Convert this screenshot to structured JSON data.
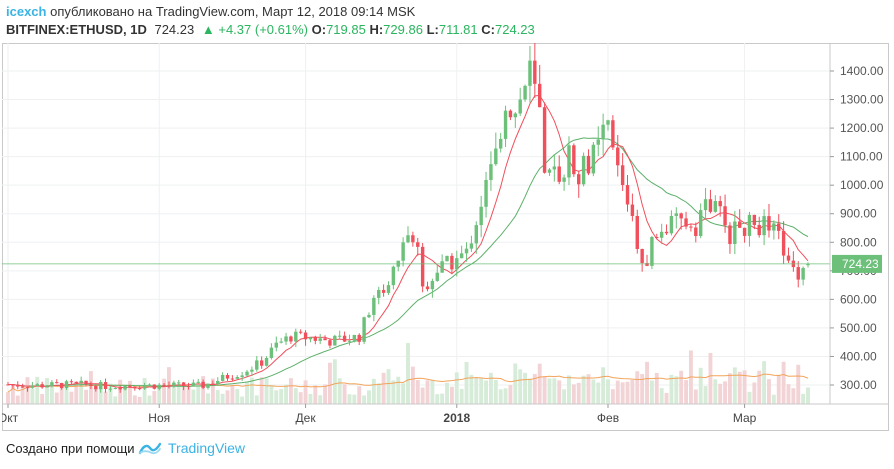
{
  "header": {
    "author": "icexch",
    "published_text": "опубликовано на TradingView.com, Март 12, 2018 09:14 MSK",
    "symbol": "BITFINEX:ETHUSD, 1D",
    "last": "724.23",
    "change": "+4.37 (+0.61%)",
    "o_label": "O:",
    "o_value": "719.85",
    "h_label": "H:",
    "h_value": "729.86",
    "l_label": "L:",
    "l_value": "711.81",
    "c_label": "C:",
    "c_value": "724.23"
  },
  "footer": {
    "created_with": "Создано при помощи",
    "brand": "TradingView"
  },
  "colors": {
    "up": "#6cc07a",
    "down": "#f0505c",
    "vol_up": "#d6ecd9",
    "vol_down": "#f3d4d6",
    "ma_fast": "#f0505c",
    "ma_slow": "#5db06a",
    "vol_ma": "#f3a35a",
    "price_line": "#6cc07a",
    "brand": "#3bb3e4"
  },
  "chart_data": {
    "type": "candlestick",
    "y_axis_labels": [
      "1400.00",
      "1300.00",
      "1200.00",
      "1100.00",
      "1000.00",
      "900.00",
      "800.00",
      "700.00",
      "600.00",
      "500.00",
      "400.00",
      "300.00"
    ],
    "y_ticks": [
      1400,
      1300,
      1200,
      1100,
      1000,
      900,
      800,
      700,
      600,
      500,
      400,
      300
    ],
    "ylim": [
      190,
      1480
    ],
    "current_price_label": "724.23",
    "current_price": 724.23,
    "x_labels": [
      {
        "label": "Окт",
        "day": 0
      },
      {
        "label": "Ноя",
        "day": 31
      },
      {
        "label": "Дек",
        "day": 61
      },
      {
        "label": "2018",
        "day": 92
      },
      {
        "label": "Фев",
        "day": 123
      },
      {
        "label": "Мар",
        "day": 151
      }
    ],
    "total_days": 164,
    "close_anchors": [
      [
        0,
        302
      ],
      [
        5,
        298
      ],
      [
        10,
        300
      ],
      [
        15,
        302
      ],
      [
        20,
        296
      ],
      [
        25,
        298
      ],
      [
        30,
        298
      ],
      [
        35,
        298
      ],
      [
        40,
        298
      ],
      [
        45,
        330
      ],
      [
        48,
        345
      ],
      [
        52,
        380
      ],
      [
        55,
        440
      ],
      [
        58,
        470
      ],
      [
        62,
        465
      ],
      [
        66,
        455
      ],
      [
        69,
        460
      ],
      [
        72,
        470
      ],
      [
        75,
        610
      ],
      [
        78,
        650
      ],
      [
        81,
        800
      ],
      [
        83,
        820
      ],
      [
        84,
        790
      ],
      [
        85,
        640
      ],
      [
        88,
        700
      ],
      [
        91,
        730
      ],
      [
        94,
        760
      ],
      [
        96,
        880
      ],
      [
        98,
        1000
      ],
      [
        100,
        1100
      ],
      [
        102,
        1300
      ],
      [
        104,
        1250
      ],
      [
        106,
        1350
      ],
      [
        107,
        1400
      ],
      [
        109,
        1250
      ],
      [
        110,
        1000
      ],
      [
        113,
        1050
      ],
      [
        115,
        1100
      ],
      [
        117,
        1050
      ],
      [
        120,
        1100
      ],
      [
        123,
        1200
      ],
      [
        125,
        1050
      ],
      [
        128,
        900
      ],
      [
        130,
        700
      ],
      [
        132,
        800
      ],
      [
        135,
        850
      ],
      [
        138,
        870
      ],
      [
        141,
        860
      ],
      [
        143,
        940
      ],
      [
        146,
        900
      ],
      [
        148,
        830
      ],
      [
        150,
        850
      ],
      [
        152,
        860
      ],
      [
        155,
        860
      ],
      [
        158,
        820
      ],
      [
        160,
        720
      ],
      [
        162,
        700
      ],
      [
        164,
        724
      ]
    ],
    "volume_range": [
      0,
      100
    ],
    "ma_fast_period": 7,
    "ma_slow_period": 20
  }
}
